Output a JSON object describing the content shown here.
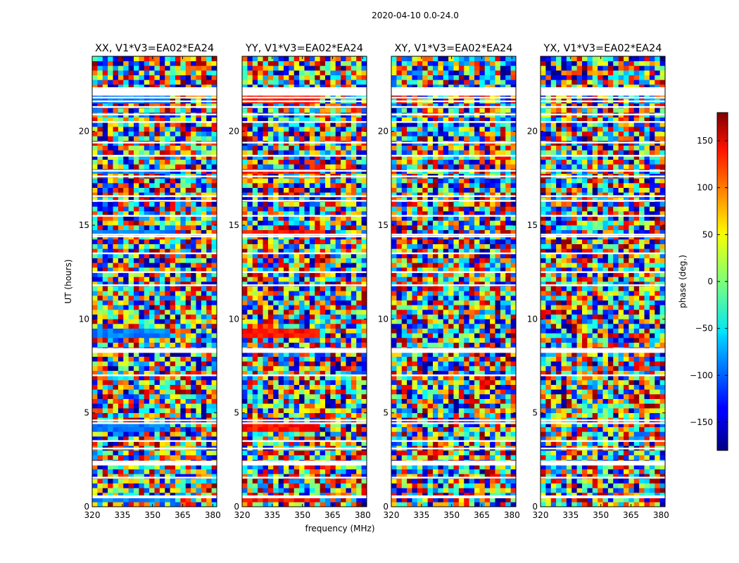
{
  "figure": {
    "suptitle": "2020-04-10 0.0-24.0"
  },
  "colorbar": {
    "label": "phase (deg.)",
    "ticks": [
      "150",
      "100",
      "50",
      "0",
      "−50",
      "−100",
      "−150"
    ],
    "tick_values": [
      150,
      100,
      50,
      0,
      -50,
      -100,
      -150
    ],
    "range": [
      -180,
      180
    ]
  },
  "chart_data": {
    "type": "heatmap",
    "title": "2020-04-10 0.0-24.0",
    "xlabel": "frequency (MHz)",
    "ylabel": "UT (hours)",
    "xlim": [
      320,
      382
    ],
    "ylim": [
      0,
      24
    ],
    "x_ticks": [
      "320",
      "335",
      "350",
      "365",
      "380"
    ],
    "x_tick_values": [
      320,
      335,
      350,
      365,
      380
    ],
    "y_ticks": [
      "0",
      "5",
      "10",
      "15",
      "20"
    ],
    "y_tick_values": [
      0,
      5,
      10,
      15,
      20
    ],
    "value_label": "phase (deg.)",
    "value_range": [
      -180,
      180
    ],
    "flagged_rows_hours": [
      0.55,
      1.55,
      2.25,
      2.35,
      3.1,
      3.5,
      4.45,
      4.6,
      7.0,
      8.25,
      8.35,
      11.8,
      12.5,
      13.5,
      14.4,
      14.5,
      15.5,
      16.3,
      16.55,
      17.6,
      17.9,
      18.7,
      19.4,
      20.5,
      20.9,
      21.3,
      21.6,
      21.8,
      21.95,
      22.1,
      22.3
    ],
    "panels": [
      {
        "title": "XX, V1*V3=EA02*EA24",
        "polarization": "XX",
        "baseline": "EA02*EA24",
        "band_phase_deg": -90
      },
      {
        "title": "YY, V1*V3=EA02*EA24",
        "polarization": "YY",
        "baseline": "EA02*EA24",
        "band_phase_deg": 130
      },
      {
        "title": "XY, V1*V3=EA02*EA24",
        "polarization": "XY",
        "baseline": "EA02*EA24",
        "band_phase_deg": null
      },
      {
        "title": "YX, V1*V3=EA02*EA24",
        "polarization": "YX",
        "baseline": "EA02*EA24",
        "band_phase_deg": null
      }
    ]
  }
}
